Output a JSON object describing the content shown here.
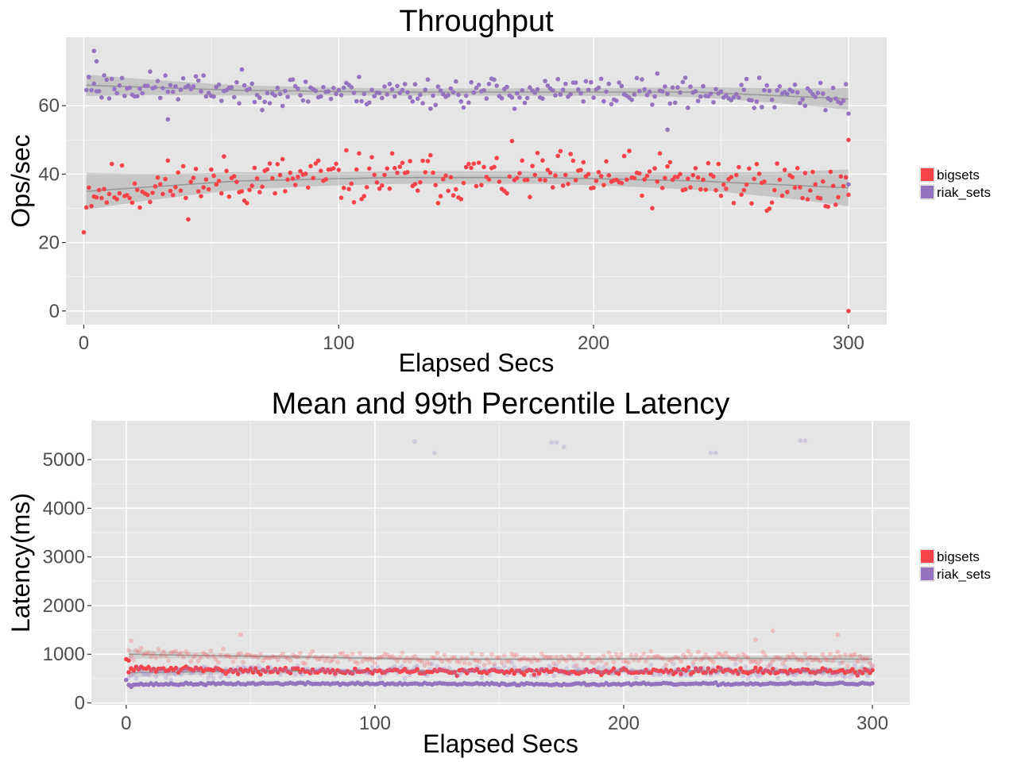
{
  "colors": {
    "panel_bg": "#e5e5e5",
    "grid_major": "#ffffff",
    "grid_minor": "#f2f2f2",
    "axis_text": "#4d4d4d",
    "title_text": "#000000",
    "band": "#999999",
    "smooth_line": "#8a8a8a",
    "bigsets": "#f8434a",
    "riak_sets": "#9473bf"
  },
  "chart_data": [
    {
      "type": "scatter",
      "title": "Throughput",
      "xlabel": "Elapsed Secs",
      "ylabel": "Ops/sec",
      "xlim": [
        -7,
        315
      ],
      "ylim": [
        -4,
        80
      ],
      "xticks": [
        0,
        100,
        200,
        300
      ],
      "yticks": [
        0,
        20,
        40,
        60
      ],
      "xtick_labels": [
        "0",
        "100",
        "200",
        "300"
      ],
      "ytick_labels": [
        "0",
        "20",
        "40",
        "60"
      ],
      "grid": true,
      "legend": {
        "position": "right",
        "entries": [
          {
            "label": "bigsets",
            "color": "#f8434a"
          },
          {
            "label": "riak_sets",
            "color": "#9473bf"
          }
        ]
      },
      "smooth": true,
      "series": [
        {
          "name": "bigsets",
          "color": "#f8434a",
          "generator": {
            "seed": 11,
            "n": 300,
            "base": [
              35,
              38,
              39,
              39,
              38,
              36
            ],
            "jitter": 6.5
          },
          "outliers": [
            [
              0,
              23
            ],
            [
              300,
              0
            ],
            [
              300,
              50
            ]
          ]
        },
        {
          "name": "riak_sets",
          "color": "#9473bf",
          "generator": {
            "seed": 23,
            "n": 300,
            "base": [
              66,
              64.5,
              64,
              64,
              64,
              62
            ],
            "jitter": 3.8
          },
          "outliers": [
            [
              4,
              76
            ],
            [
              5,
              73
            ],
            [
              33,
              56
            ],
            [
              229,
              53
            ],
            [
              300,
              37
            ]
          ]
        }
      ]
    },
    {
      "type": "scatter",
      "title": "Mean and 99th Percentile Latency",
      "xlabel": "Elapsed Secs",
      "ylabel": "Latency(ms)",
      "xlim": [
        -14,
        315
      ],
      "ylim": [
        -40,
        5800
      ],
      "xticks": [
        0,
        100,
        200,
        300
      ],
      "yticks": [
        0,
        1000,
        2000,
        3000,
        4000,
        5000
      ],
      "xtick_labels": [
        "0",
        "100",
        "200",
        "300"
      ],
      "ytick_labels": [
        "0",
        "1000",
        "2000",
        "3000",
        "4000",
        "5000"
      ],
      "grid": true,
      "legend": {
        "position": "right",
        "entries": [
          {
            "label": "bigsets",
            "color": "#f8434a"
          },
          {
            "label": "riak_sets",
            "color": "#9473bf"
          }
        ]
      },
      "smooth": true,
      "series": [
        {
          "name": "bigsets mean",
          "color": "#f8434a",
          "generator": {
            "seed": 31,
            "n": 300,
            "base": [
              700,
              660,
              640,
              650,
              660,
              640
            ],
            "jitter": 55
          },
          "outliers": [
            [
              0,
              900
            ],
            [
              1,
              870
            ]
          ]
        },
        {
          "name": "riak_sets mean",
          "color": "#9473bf",
          "generator": {
            "seed": 37,
            "n": 300,
            "base": [
              380,
              400,
              390,
              385,
              390,
              400
            ],
            "jitter": 20
          },
          "outliers": [
            [
              0,
              470
            ],
            [
              2,
              330
            ]
          ]
        },
        {
          "name": "bigsets 99th",
          "color": "#f8434a",
          "faded": true,
          "generator": {
            "seed": 41,
            "n": 300,
            "base": [
              1000,
              950,
              900,
              900,
              920,
              900
            ],
            "jitter": 110
          },
          "outliers": [
            [
              2,
              1280
            ],
            [
              46,
              1400
            ],
            [
              253,
              1300
            ],
            [
              260,
              1480
            ],
            [
              286,
              1400
            ]
          ]
        },
        {
          "name": "riak_sets 99th",
          "color": "#9473bf",
          "faded": true,
          "generator": {
            "seed": 43,
            "n": 300,
            "base": [
              620,
              660,
              660,
              660,
              650,
              650
            ],
            "jitter": 110
          },
          "outliers": [
            [
              116,
              5370
            ],
            [
              124,
              5140
            ],
            [
              171,
              5350
            ],
            [
              173,
              5350
            ],
            [
              176,
              5260
            ],
            [
              235,
              5140
            ],
            [
              237,
              5140
            ],
            [
              271,
              5390
            ],
            [
              273,
              5390
            ]
          ]
        }
      ]
    }
  ]
}
